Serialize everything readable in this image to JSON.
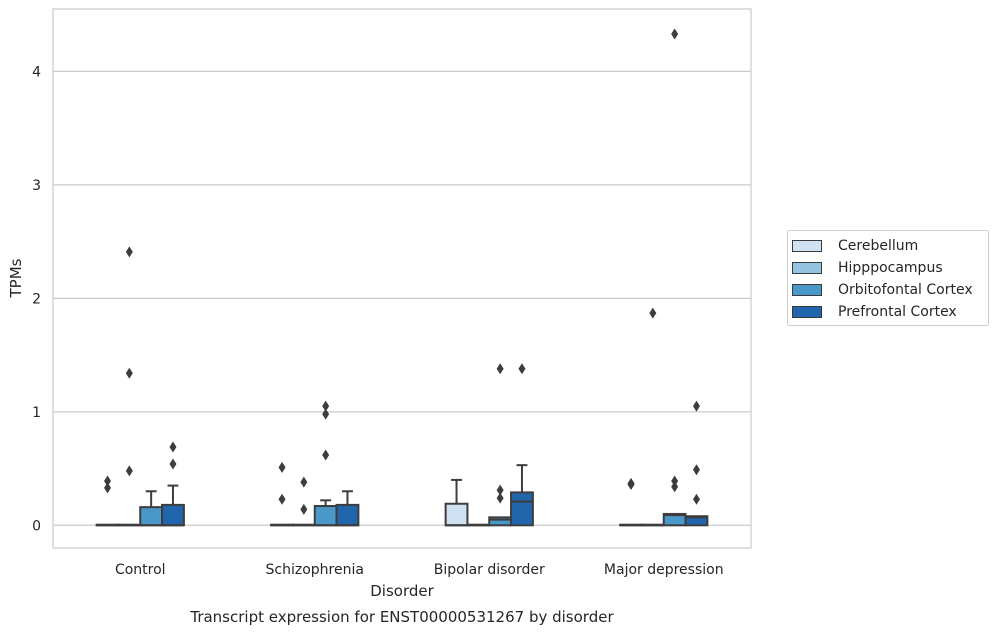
{
  "chart_data": {
    "type": "box",
    "title": "Transcript expression for ENST00000531267 by disorder",
    "xlabel": "Disorder",
    "ylabel": "TPMs",
    "ylim": [
      -0.2,
      4.55
    ],
    "yticks": [
      0,
      1,
      2,
      3,
      4
    ],
    "grid": "horizontal",
    "legend_position": "right",
    "categories": [
      "Control",
      "Schizophrenia",
      "Bipolar disorder",
      "Major depression"
    ],
    "series": [
      {
        "name": "Cerebellum",
        "color": "#d0e1f2",
        "boxes": [
          {
            "q1": 0,
            "median": 0,
            "q3": 0,
            "whisker_low": 0,
            "whisker_high": 0,
            "outliers": [
              0.33,
              0.39
            ]
          },
          {
            "q1": 0,
            "median": 0,
            "q3": 0,
            "whisker_low": 0,
            "whisker_high": 0,
            "outliers": [
              0.23,
              0.51
            ]
          },
          {
            "q1": 0,
            "median": 0,
            "q3": 0.19,
            "whisker_low": 0,
            "whisker_high": 0.4,
            "outliers": []
          },
          {
            "q1": 0,
            "median": 0,
            "q3": 0,
            "whisker_low": 0,
            "whisker_high": 0,
            "outliers": [
              0.36,
              0.37
            ]
          }
        ]
      },
      {
        "name": "Hipppocampus",
        "color": "#94c4df",
        "boxes": [
          {
            "q1": 0,
            "median": 0,
            "q3": 0,
            "whisker_low": 0,
            "whisker_high": 0,
            "outliers": [
              0.48,
              1.34,
              2.41
            ]
          },
          {
            "q1": 0,
            "median": 0,
            "q3": 0,
            "whisker_low": 0,
            "whisker_high": 0,
            "outliers": [
              0.14,
              0.38
            ]
          },
          {
            "q1": 0,
            "median": 0,
            "q3": 0,
            "whisker_low": 0,
            "whisker_high": 0,
            "outliers": []
          },
          {
            "q1": 0,
            "median": 0,
            "q3": 0,
            "whisker_low": 0,
            "whisker_high": 0,
            "outliers": [
              1.87
            ]
          }
        ]
      },
      {
        "name": "Orbitofontal Cortex",
        "color": "#4a98c9",
        "boxes": [
          {
            "q1": 0,
            "median": 0,
            "q3": 0.16,
            "whisker_low": 0,
            "whisker_high": 0.3,
            "outliers": []
          },
          {
            "q1": 0,
            "median": 0,
            "q3": 0.17,
            "whisker_low": 0,
            "whisker_high": 0.22,
            "outliers": [
              0.62,
              0.98,
              1.05
            ]
          },
          {
            "q1": 0,
            "median": 0.05,
            "q3": 0.07,
            "whisker_low": 0,
            "whisker_high": 0.07,
            "outliers": [
              0.24,
              0.31,
              1.38
            ]
          },
          {
            "q1": 0,
            "median": 0.09,
            "q3": 0.1,
            "whisker_low": 0,
            "whisker_high": 0.1,
            "outliers": [
              0.34,
              0.39,
              4.33
            ]
          }
        ]
      },
      {
        "name": "Prefrontal Cortex",
        "color": "#2166ac",
        "boxes": [
          {
            "q1": 0,
            "median": 0,
            "q3": 0.18,
            "whisker_low": 0,
            "whisker_high": 0.35,
            "outliers": [
              0.54,
              0.69
            ]
          },
          {
            "q1": 0,
            "median": 0,
            "q3": 0.18,
            "whisker_low": 0,
            "whisker_high": 0.3,
            "outliers": []
          },
          {
            "q1": 0,
            "median": 0.21,
            "q3": 0.29,
            "whisker_low": 0,
            "whisker_high": 0.53,
            "outliers": [
              1.38
            ]
          },
          {
            "q1": 0,
            "median": 0.07,
            "q3": 0.08,
            "whisker_low": 0,
            "whisker_high": 0.08,
            "outliers": [
              0.23,
              0.49,
              1.05
            ]
          }
        ]
      }
    ]
  }
}
